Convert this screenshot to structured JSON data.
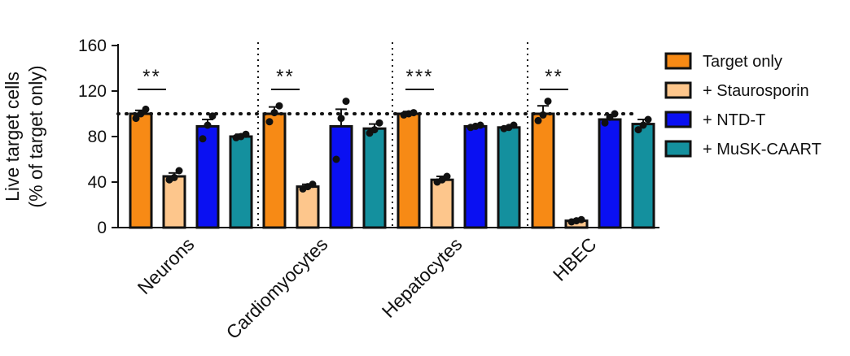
{
  "chart_data": {
    "type": "bar",
    "ylabel_line1": "Live target cells",
    "ylabel_line2": "(% of target only)",
    "xlabel": "",
    "ylim": [
      0,
      160
    ],
    "yticks": [
      0,
      40,
      80,
      120,
      160
    ],
    "reference_line": 100,
    "legend_position": "right",
    "categories": [
      "Neurons",
      "Cardiomyocytes",
      "Hepatocytes",
      "HBEC"
    ],
    "series": [
      {
        "name": "Target only",
        "color": "#F78A15",
        "values": [
          100,
          100,
          100,
          100
        ],
        "errors": [
          3,
          6,
          2,
          7
        ],
        "points": [
          [
            96,
            100,
            104
          ],
          [
            93,
            101,
            107
          ],
          [
            99,
            100,
            101
          ],
          [
            94,
            99,
            111
          ]
        ]
      },
      {
        "name": "+ Staurosporin",
        "color": "#FDC68C",
        "values": [
          45,
          36,
          42,
          6
        ],
        "errors": [
          3,
          2,
          3,
          1
        ],
        "points": [
          [
            42,
            44,
            50
          ],
          [
            34,
            36,
            38
          ],
          [
            40,
            42,
            45
          ],
          [
            5,
            6,
            7
          ]
        ]
      },
      {
        "name": "+ NTD-T",
        "color": "#0A10F2",
        "values": [
          89,
          89,
          89,
          95
        ],
        "errors": [
          6,
          15,
          1,
          4
        ],
        "points": [
          [
            78,
            90,
            98
          ],
          [
            60,
            96,
            111
          ],
          [
            88,
            89,
            90
          ],
          [
            92,
            97,
            100
          ]
        ]
      },
      {
        "name": "+ MuSK-CAART",
        "color": "#14909E",
        "values": [
          80,
          87,
          88,
          91
        ],
        "errors": [
          2,
          4,
          1,
          4
        ],
        "points": [
          [
            79,
            80,
            82
          ],
          [
            83,
            86,
            92
          ],
          [
            87,
            88,
            90
          ],
          [
            86,
            90,
            95
          ]
        ]
      }
    ],
    "significance": [
      "**",
      "**",
      "***",
      "**"
    ]
  }
}
